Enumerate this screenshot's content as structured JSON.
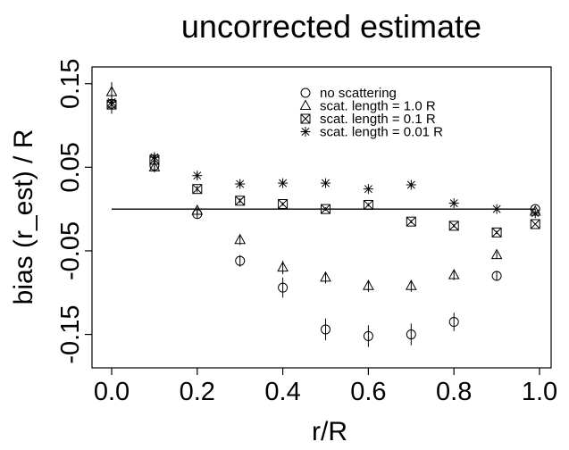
{
  "chart_data": {
    "type": "scatter",
    "title": "uncorrected estimate",
    "xlabel": "r/R",
    "ylabel": "bias (r_est) / R",
    "xlim": [
      0.0,
      1.0
    ],
    "ylim": [
      -0.19,
      0.17
    ],
    "xticks": [
      0.0,
      0.2,
      0.4,
      0.6,
      0.8,
      1.0
    ],
    "xtick_labels": [
      "0.0",
      "0.2",
      "0.4",
      "0.6",
      "0.8",
      "1.0"
    ],
    "yticks": [
      -0.15,
      -0.05,
      0.05,
      0.15
    ],
    "ytick_labels": [
      "-0.15",
      "-0.05",
      "0.05",
      "0.15"
    ],
    "grid": false,
    "reference_line": {
      "y": 0.0,
      "x_range": [
        0.0,
        0.99
      ]
    },
    "legend_position": "top-right",
    "legend": [
      {
        "label": "no scattering",
        "marker": "circle"
      },
      {
        "label": "scat. length = 1.0 R",
        "marker": "triangle"
      },
      {
        "label": "scat. length = 0.1 R",
        "marker": "crossed-square"
      },
      {
        "label": "scat. length = 0.01 R",
        "marker": "asterisk"
      }
    ],
    "series": [
      {
        "marker": "circle",
        "points": [
          {
            "x": 0.0,
            "y": 0.126,
            "err": 0.012
          },
          {
            "x": 0.1,
            "y": 0.052,
            "err": 0.007
          },
          {
            "x": 0.2,
            "y": -0.006,
            "err": 0.005
          },
          {
            "x": 0.3,
            "y": -0.062,
            "err": 0.007
          },
          {
            "x": 0.4,
            "y": -0.094,
            "err": 0.012
          },
          {
            "x": 0.5,
            "y": -0.144,
            "err": 0.013
          },
          {
            "x": 0.6,
            "y": -0.152,
            "err": 0.013
          },
          {
            "x": 0.7,
            "y": -0.15,
            "err": 0.013
          },
          {
            "x": 0.8,
            "y": -0.135,
            "err": 0.011
          },
          {
            "x": 0.9,
            "y": -0.08,
            "err": 0.006
          },
          {
            "x": 0.99,
            "y": 0.0,
            "err": 0.0
          }
        ]
      },
      {
        "marker": "triangle",
        "points": [
          {
            "x": 0.0,
            "y": 0.14,
            "err": 0.012
          },
          {
            "x": 0.1,
            "y": 0.05,
            "err": 0.006
          },
          {
            "x": 0.2,
            "y": -0.002,
            "err": 0.004
          },
          {
            "x": 0.3,
            "y": -0.037,
            "err": 0.006
          },
          {
            "x": 0.4,
            "y": -0.07,
            "err": 0.008
          },
          {
            "x": 0.5,
            "y": -0.082,
            "err": 0.007
          },
          {
            "x": 0.6,
            "y": -0.092,
            "err": 0.007
          },
          {
            "x": 0.7,
            "y": -0.092,
            "err": 0.007
          },
          {
            "x": 0.8,
            "y": -0.079,
            "err": 0.006
          },
          {
            "x": 0.9,
            "y": -0.055,
            "err": 0.004
          },
          {
            "x": 0.99,
            "y": -0.003,
            "err": 0.0
          }
        ]
      },
      {
        "marker": "crossed-square",
        "points": [
          {
            "x": 0.0,
            "y": 0.125,
            "err": 0.01
          },
          {
            "x": 0.1,
            "y": 0.059,
            "err": 0.006
          },
          {
            "x": 0.2,
            "y": 0.024,
            "err": 0.004
          },
          {
            "x": 0.3,
            "y": 0.01,
            "err": 0.003
          },
          {
            "x": 0.4,
            "y": 0.006,
            "err": 0.002
          },
          {
            "x": 0.5,
            "y": 0.0,
            "err": 0.002
          },
          {
            "x": 0.6,
            "y": 0.005,
            "err": 0.002
          },
          {
            "x": 0.7,
            "y": -0.015,
            "err": 0.002
          },
          {
            "x": 0.8,
            "y": -0.02,
            "err": 0.002
          },
          {
            "x": 0.9,
            "y": -0.028,
            "err": 0.002
          },
          {
            "x": 0.99,
            "y": -0.018,
            "err": 0.0
          }
        ]
      },
      {
        "marker": "asterisk",
        "points": [
          {
            "x": 0.0,
            "y": 0.128,
            "err": 0.01
          },
          {
            "x": 0.1,
            "y": 0.062,
            "err": 0.006
          },
          {
            "x": 0.2,
            "y": 0.04,
            "err": 0.004
          },
          {
            "x": 0.3,
            "y": 0.03,
            "err": 0.003
          },
          {
            "x": 0.4,
            "y": 0.031,
            "err": 0.002
          },
          {
            "x": 0.5,
            "y": 0.031,
            "err": 0.002
          },
          {
            "x": 0.6,
            "y": 0.024,
            "err": 0.002
          },
          {
            "x": 0.7,
            "y": 0.029,
            "err": 0.002
          },
          {
            "x": 0.8,
            "y": 0.007,
            "err": 0.002
          },
          {
            "x": 0.9,
            "y": 0.0,
            "err": 0.001
          },
          {
            "x": 0.99,
            "y": -0.005,
            "err": 0.0
          }
        ]
      }
    ]
  }
}
